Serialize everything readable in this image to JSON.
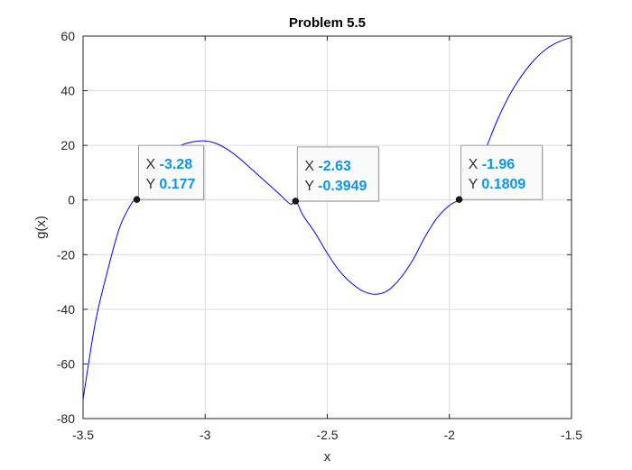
{
  "chart_data": {
    "type": "line",
    "title": "Problem 5.5",
    "xlabel": "x",
    "ylabel": "g(x)",
    "xlim": [
      -3.5,
      -1.5
    ],
    "ylim": [
      -80,
      60
    ],
    "xticks": [
      "-3.5",
      "-3",
      "-2.5",
      "-2",
      "-1.5"
    ],
    "yticks": [
      "60",
      "40",
      "20",
      "0",
      "-20",
      "-40",
      "-60",
      "-80"
    ],
    "grid": true,
    "series": [
      {
        "color": "#0000ff",
        "x": [
          -3.5,
          -3.45,
          -3.4,
          -3.35,
          -3.3,
          -3.28,
          -3.25,
          -3.2,
          -3.15,
          -3.1,
          -3.05,
          -3.0,
          -2.95,
          -2.9,
          -2.85,
          -2.8,
          -2.75,
          -2.7,
          -2.65,
          -2.63,
          -2.6,
          -2.55,
          -2.5,
          -2.45,
          -2.4,
          -2.35,
          -2.3,
          -2.25,
          -2.2,
          -2.15,
          -2.1,
          -2.05,
          -2.0,
          -1.96,
          -1.95,
          -1.9,
          -1.85,
          -1.8,
          -1.75,
          -1.7,
          -1.65,
          -1.6,
          -1.55,
          -1.5
        ],
        "y": [
          -73,
          -45,
          -26,
          -10,
          -1,
          0,
          7,
          13.5,
          17.5,
          20,
          21.3,
          21.6,
          20.5,
          18,
          14.5,
          10.5,
          6.5,
          2.5,
          -1.5,
          0,
          -5.5,
          -12,
          -19.5,
          -26,
          -30.5,
          -33.5,
          -34.5,
          -33,
          -28.5,
          -22,
          -13.5,
          -6.5,
          -2,
          0,
          1,
          8,
          19,
          30,
          39,
          46,
          51.5,
          55.5,
          58,
          59.5
        ]
      }
    ],
    "datatips": [
      {
        "x_key": "X",
        "x_val": "-3.28",
        "y_key": "Y",
        "y_val": "0.177",
        "x": -3.28,
        "y": 0.177
      },
      {
        "x_key": "X",
        "x_val": "-2.63",
        "y_key": "Y",
        "y_val": "-0.3949",
        "x": -2.63,
        "y": -0.3949
      },
      {
        "x_key": "X",
        "x_val": "-1.96",
        "y_key": "Y",
        "y_val": "0.1809",
        "x": -1.96,
        "y": 0.1809
      }
    ],
    "colors": {
      "datatip_value": "#0b96e6",
      "datatip_marker": "#1a1a1a"
    }
  }
}
